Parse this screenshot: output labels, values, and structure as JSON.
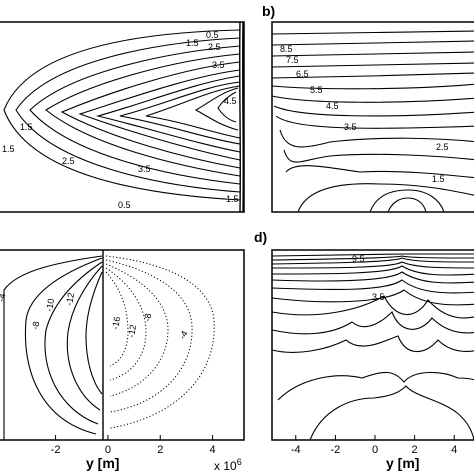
{
  "chart_data": [
    {
      "type": "contour",
      "panel": "a",
      "panel_label": "",
      "contour_labels": [
        "1.5",
        "2.5",
        "3.5",
        "0.5",
        "1.5",
        "1.5",
        "2.5",
        "3.5",
        "4.5",
        "0.5",
        "1.5"
      ]
    },
    {
      "type": "contour",
      "panel": "b",
      "panel_label": "b)",
      "contour_labels": [
        "8.5",
        "7.5",
        "6.5",
        "5.5",
        "4.5",
        "3.5",
        "2.5",
        "1.5"
      ]
    },
    {
      "type": "contour",
      "panel": "c",
      "panel_label": "",
      "xlabel": "y [m]",
      "x_ticks": [
        "-2",
        "0",
        "2",
        "4"
      ],
      "x_tick_values": [
        -2,
        0,
        2,
        4
      ],
      "xlim": [
        -4.2,
        5.2
      ],
      "x_multiplier": "x 10",
      "x_multiplier_exp": "6",
      "contour_labels_solid": [
        "-12",
        "-10",
        "-8",
        "-4"
      ],
      "contour_labels_dotted": [
        "-16",
        "-12",
        "-8",
        "-4"
      ]
    },
    {
      "type": "contour",
      "panel": "d",
      "panel_label": "d)",
      "xlabel": "y [m]",
      "x_ticks": [
        "-4",
        "-2",
        "0",
        "2",
        "4"
      ],
      "x_tick_values": [
        -4,
        -2,
        0,
        2,
        4
      ],
      "xlim": [
        -5.2,
        5.2
      ],
      "contour_labels": [
        "9.5",
        "3.5"
      ]
    }
  ]
}
